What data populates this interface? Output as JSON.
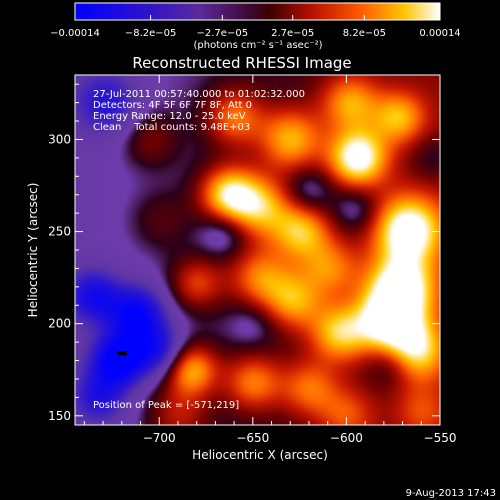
{
  "chart_data": {
    "type": "heatmap",
    "title": "Reconstructed RHESSI Image",
    "xlabel": "Heliocentric X (arcsec)",
    "ylabel": "Heliocentric Y (arcsec)",
    "xlim": [
      -745,
      -550
    ],
    "ylim": [
      145,
      335
    ],
    "x_ticks": [
      -700,
      -650,
      -600,
      -550
    ],
    "x_tick_labels": [
      "−700",
      "−650",
      "−600",
      "−550"
    ],
    "y_ticks": [
      150,
      200,
      250,
      300
    ],
    "y_tick_labels": [
      "150",
      "200",
      "250",
      "300"
    ],
    "colorbar": {
      "ticks": [
        -0.00014,
        -8.2e-05,
        -2.7e-05,
        2.7e-05,
        8.2e-05,
        0.00014
      ],
      "tick_labels": [
        "−0.00014",
        "−8.2e−05",
        "−2.7e−05",
        "2.7e−05",
        "8.2e−05",
        "0.00014"
      ],
      "range": [
        -0.00014,
        0.00014
      ],
      "unit_label": "(photons cm⁻² s⁻¹ asec⁻²)"
    },
    "annotations": [
      "27-Jul-2011 00:57:40.000 to 01:02:32.000",
      "Detectors: 4F 5F 6F 7F 8F, Att 0",
      "Energy Range: 12.0 - 25.0 keV",
      "Clean    Total counts: 9.48E+03",
      "Position of Peak = [-571,219]"
    ],
    "peak": {
      "x": -571,
      "y": 219
    },
    "blobs": [
      {
        "x": -594,
        "y": 290,
        "v": 1.0,
        "s": 11
      },
      {
        "x": -567,
        "y": 251,
        "v": 1.0,
        "s": 13
      },
      {
        "x": -571,
        "y": 219,
        "v": 1.0,
        "s": 13
      },
      {
        "x": -579,
        "y": 200,
        "v": 0.8,
        "s": 12
      },
      {
        "x": -565,
        "y": 185,
        "v": 0.9,
        "s": 12
      },
      {
        "x": -663,
        "y": 270,
        "v": 0.9,
        "s": 11
      },
      {
        "x": -646,
        "y": 263,
        "v": 0.7,
        "s": 12
      },
      {
        "x": -624,
        "y": 250,
        "v": 0.7,
        "s": 11
      },
      {
        "x": -646,
        "y": 225,
        "v": 0.6,
        "s": 12
      },
      {
        "x": -628,
        "y": 212,
        "v": 0.6,
        "s": 11
      },
      {
        "x": -609,
        "y": 230,
        "v": 0.5,
        "s": 11
      },
      {
        "x": -680,
        "y": 222,
        "v": 0.5,
        "s": 10
      },
      {
        "x": -604,
        "y": 195,
        "v": 0.7,
        "s": 11
      },
      {
        "x": -683,
        "y": 175,
        "v": 0.8,
        "s": 10
      },
      {
        "x": -650,
        "y": 168,
        "v": 0.6,
        "s": 11
      },
      {
        "x": -620,
        "y": 165,
        "v": 0.5,
        "s": 11
      },
      {
        "x": -630,
        "y": 300,
        "v": 0.7,
        "s": 12
      },
      {
        "x": -660,
        "y": 312,
        "v": 0.6,
        "s": 11
      },
      {
        "x": -598,
        "y": 320,
        "v": 0.6,
        "s": 11
      },
      {
        "x": -572,
        "y": 312,
        "v": 0.6,
        "s": 10
      },
      {
        "x": -705,
        "y": 300,
        "v": 0.3,
        "s": 11
      },
      {
        "x": -700,
        "y": 256,
        "v": 0.2,
        "s": 12
      },
      {
        "x": -690,
        "y": 150,
        "v": 0.4,
        "s": 12
      },
      {
        "x": -600,
        "y": 150,
        "v": 0.4,
        "s": 11
      },
      {
        "x": -560,
        "y": 152,
        "v": 0.3,
        "s": 10
      },
      {
        "x": -722,
        "y": 180,
        "v": -0.9,
        "s": 10
      },
      {
        "x": -712,
        "y": 205,
        "v": -0.8,
        "s": 11
      },
      {
        "x": -735,
        "y": 215,
        "v": -0.6,
        "s": 10
      },
      {
        "x": -700,
        "y": 185,
        "v": -0.6,
        "s": 10
      },
      {
        "x": -732,
        "y": 160,
        "v": -0.5,
        "s": 10
      },
      {
        "x": -728,
        "y": 320,
        "v": -0.5,
        "s": 12
      },
      {
        "x": -665,
        "y": 250,
        "v": -0.3,
        "s": 9
      },
      {
        "x": -620,
        "y": 272,
        "v": -0.3,
        "s": 9
      },
      {
        "x": -595,
        "y": 262,
        "v": -0.3,
        "s": 9
      },
      {
        "x": -575,
        "y": 180,
        "v": -0.5,
        "s": 10
      },
      {
        "x": -553,
        "y": 290,
        "v": -0.2,
        "s": 9
      },
      {
        "x": -650,
        "y": 200,
        "v": -0.2,
        "s": 9
      }
    ]
  },
  "footer": {
    "date_stamp": "9-Aug-2013 17:43"
  }
}
